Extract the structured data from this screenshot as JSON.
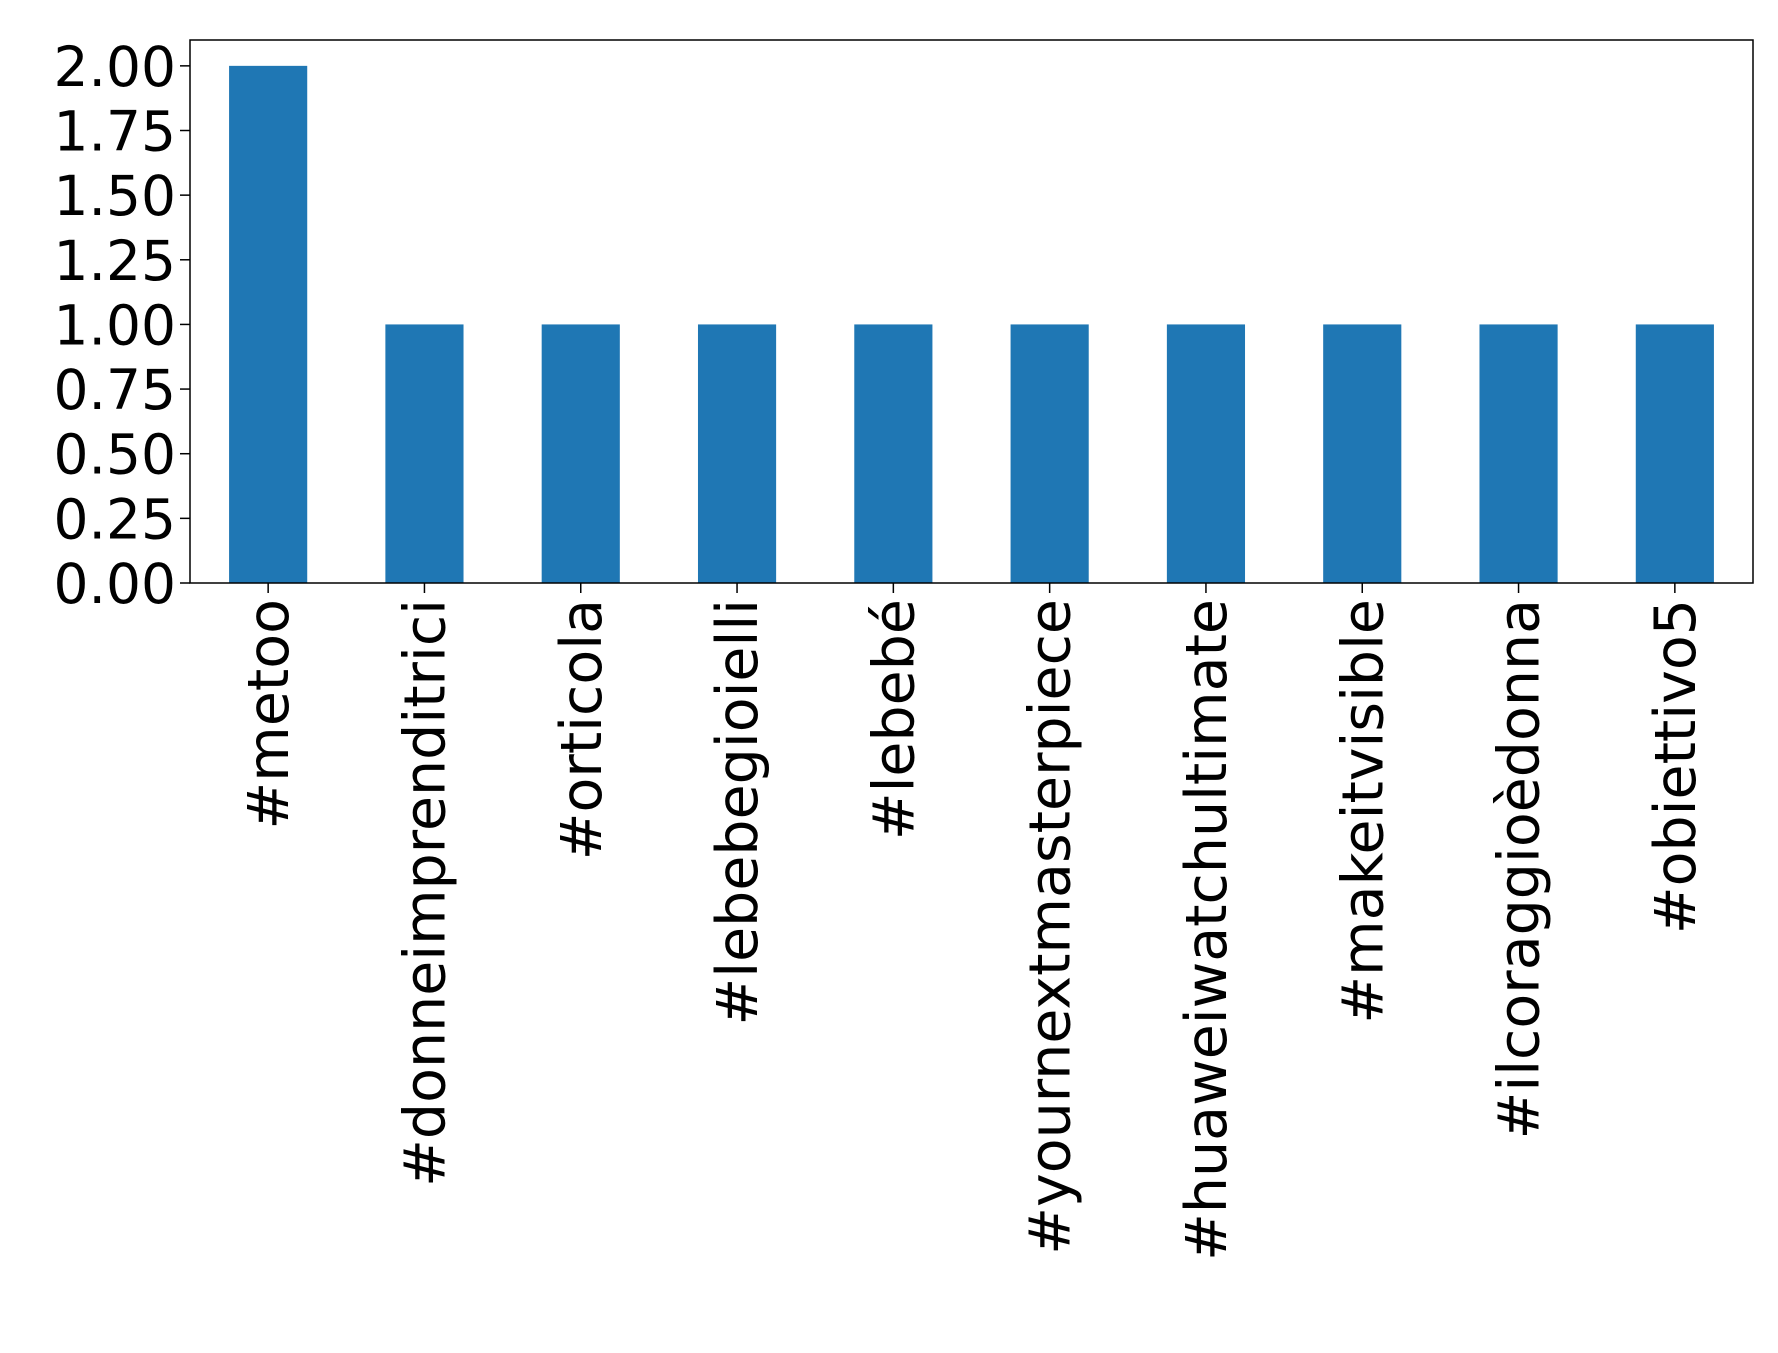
{
  "chart_data": {
    "type": "bar",
    "categories": [
      "#metoo",
      "#donneimprenditrici",
      "#orticola",
      "#lebebegioielli",
      "#lebebé",
      "#yournextmasterpiece",
      "#huaweiwatchultimate",
      "#makeitvisible",
      "#ilcoraggioèdonna",
      "#obiettivo5"
    ],
    "values": [
      2,
      1,
      1,
      1,
      1,
      1,
      1,
      1,
      1,
      1
    ],
    "color": "#1f77b4",
    "ylim": [
      0,
      2.1
    ],
    "yticks": [
      {
        "value": 0,
        "label": "0.00"
      },
      {
        "value": 0.25,
        "label": "0.25"
      },
      {
        "value": 0.5,
        "label": "0.50"
      },
      {
        "value": 0.75,
        "label": "0.75"
      },
      {
        "value": 1,
        "label": "1.00"
      },
      {
        "value": 1.25,
        "label": "1.25"
      },
      {
        "value": 1.5,
        "label": "1.50"
      },
      {
        "value": 1.75,
        "label": "1.75"
      },
      {
        "value": 2,
        "label": "2.00"
      }
    ],
    "grid": false
  }
}
